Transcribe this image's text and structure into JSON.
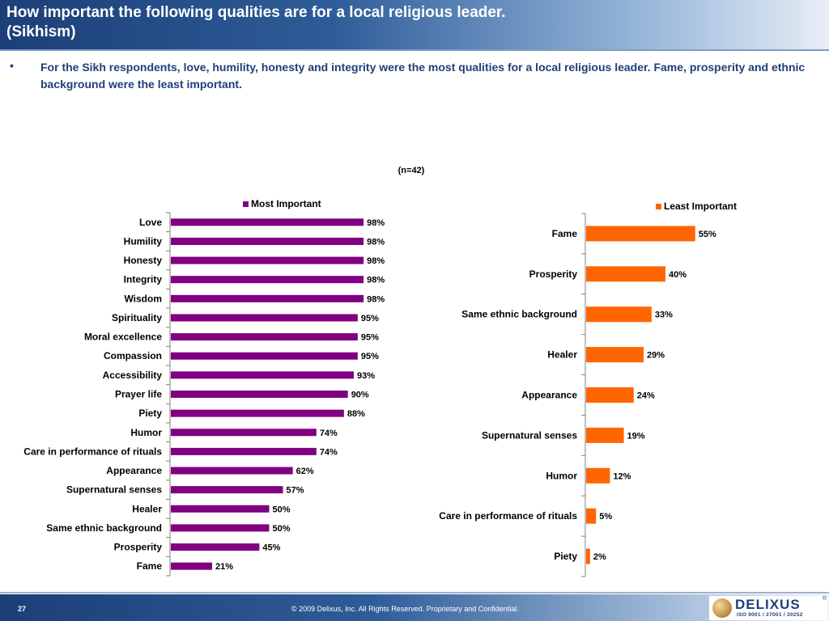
{
  "header": {
    "title_line1": "How important the following qualities are for a local religious leader.",
    "title_line2": "(Sikhism)"
  },
  "bullet": {
    "symbol": "•",
    "text": "For the Sikh respondents, love, humility, honesty and integrity were the most qualities for a local religious leader. Fame, prosperity and ethnic background were the least important."
  },
  "sample_label": "(n=42)",
  "chart_data": [
    {
      "type": "bar",
      "orientation": "horizontal",
      "legend": "Most Important",
      "legend_position": "top",
      "color": "#800080",
      "categories": [
        "Love",
        "Humility",
        "Honesty",
        "Integrity",
        "Wisdom",
        "Spirituality",
        "Moral excellence",
        "Compassion",
        "Accessibility",
        "Prayer life",
        "Piety",
        "Humor",
        "Care in performance of rituals",
        "Appearance",
        "Supernatural senses",
        "Healer",
        "Same ethnic background",
        "Prosperity",
        "Fame"
      ],
      "series": [
        {
          "name": "Most Important",
          "values": [
            98,
            98,
            98,
            98,
            98,
            95,
            95,
            95,
            93,
            90,
            88,
            74,
            74,
            62,
            57,
            50,
            50,
            45,
            21
          ]
        }
      ],
      "value_suffix": "%",
      "xlim": [
        0,
        100
      ],
      "grid": false
    },
    {
      "type": "bar",
      "orientation": "horizontal",
      "legend": "Least Important",
      "legend_position": "top-right",
      "color": "#ff6600",
      "categories": [
        "Fame",
        "Prosperity",
        "Same ethnic background",
        "Healer",
        "Appearance",
        "Supernatural senses",
        "Humor",
        "Care in performance of rituals",
        "Piety"
      ],
      "series": [
        {
          "name": "Least Important",
          "values": [
            55,
            40,
            33,
            29,
            24,
            19,
            12,
            5,
            2
          ]
        }
      ],
      "value_suffix": "%",
      "xlim": [
        0,
        100
      ],
      "grid": false
    }
  ],
  "footer": {
    "page_number": "27",
    "copyright": "© 2009 Delixus, Inc. All Rights Reserved. Proprietary and Confidential.",
    "logo_name": "DELIXUS",
    "logo_registered": "®",
    "logo_iso": "ISO 9001 / 27001 / 20252"
  }
}
